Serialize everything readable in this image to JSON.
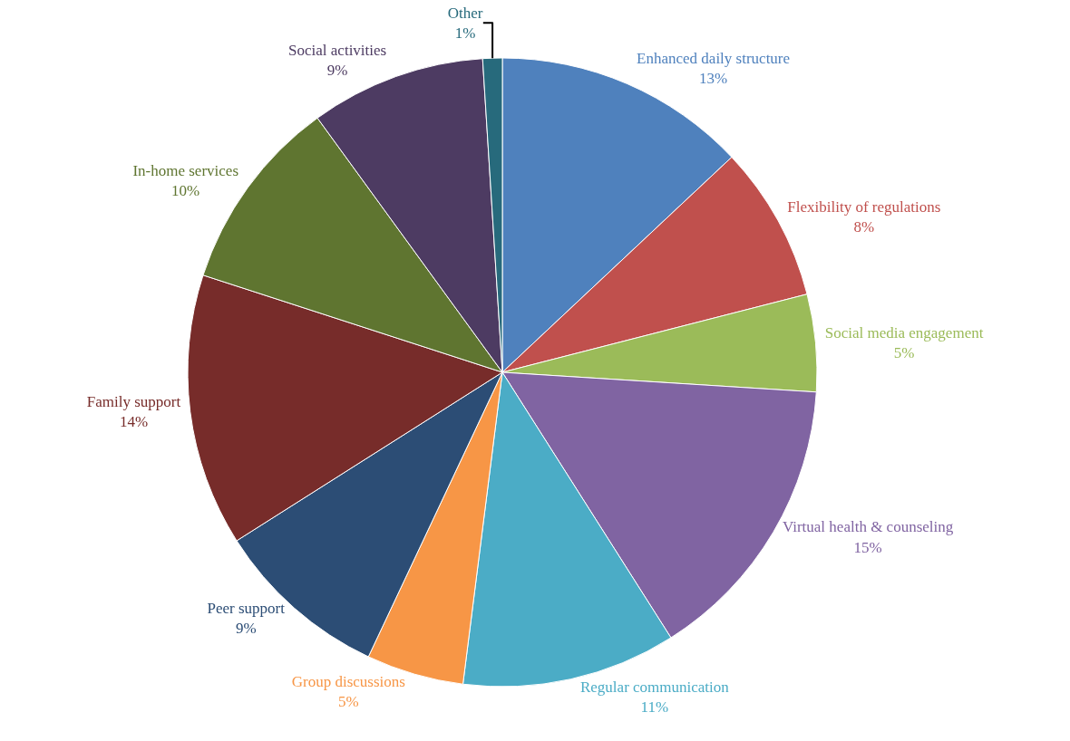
{
  "chart_data": {
    "type": "pie",
    "categories": [
      "Enhanced daily structure",
      "Flexibility of regulations",
      "Social media engagement",
      "Virtual health & counseling",
      "Regular communication",
      "Group discussions",
      "Peer support",
      "Family support",
      "In-home services",
      "Social activities",
      "Other"
    ],
    "values": [
      13,
      8,
      5,
      15,
      11,
      5,
      9,
      14,
      10,
      9,
      1
    ],
    "value_labels": [
      "13%",
      "8%",
      "5%",
      "15%",
      "11%",
      "5%",
      "9%",
      "14%",
      "10%",
      "9%",
      "1%"
    ],
    "colors": [
      "#4f81bd",
      "#c0504d",
      "#9bbb59",
      "#8064a2",
      "#4bacc6",
      "#f79646",
      "#2c4d75",
      "#772c2a",
      "#5f7530",
      "#4d3b62",
      "#276a7c"
    ],
    "legend": false
  }
}
